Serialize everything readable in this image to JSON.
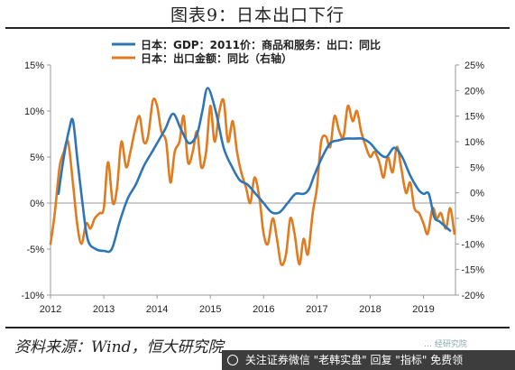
{
  "page": {
    "title": "图表9：日本出口下行",
    "source": "资料来源：Wind，恒大研究院",
    "watermark_small": "… 经研究院",
    "banner_text": "关注证券微信 \"老韩实盘\" 回复 \"指标\" 免费领"
  },
  "colors": {
    "blue": "#2E75B6",
    "orange": "#E07B1F",
    "axis": "#999999"
  },
  "chart_data": {
    "type": "line",
    "legend": {
      "position": "top-left"
    },
    "x_ticks": [
      "2012",
      "2013",
      "2014",
      "2015",
      "2016",
      "2017",
      "2018",
      "2019"
    ],
    "xlim": [
      2012.0,
      2019.6
    ],
    "y_left": {
      "ticks": [
        "15%",
        "10%",
        "5%",
        "0%",
        "-5%",
        "-10%"
      ],
      "ylim": [
        -10,
        15
      ]
    },
    "y_right": {
      "ticks": [
        "25%",
        "20%",
        "15%",
        "10%",
        "5%",
        "0%",
        "-5%",
        "-10%",
        "-15%",
        "-20%"
      ],
      "ylim": [
        -20,
        25
      ]
    },
    "series": [
      {
        "name": "日本：GDP：2011价：商品和服务：出口：同比",
        "axis": "left",
        "color": "#2E75B6",
        "x": [
          2012.15,
          2012.25,
          2012.35,
          2012.42,
          2012.5,
          2012.6,
          2012.7,
          2012.85,
          2013.0,
          2013.15,
          2013.3,
          2013.45,
          2013.6,
          2013.75,
          2013.9,
          2014.0,
          2014.15,
          2014.3,
          2014.45,
          2014.6,
          2014.75,
          2014.85,
          2014.95,
          2015.1,
          2015.25,
          2015.4,
          2015.55,
          2015.7,
          2015.85,
          2016.0,
          2016.15,
          2016.3,
          2016.45,
          2016.6,
          2016.75,
          2016.85,
          2016.95,
          2017.1,
          2017.25,
          2017.4,
          2017.55,
          2017.7,
          2017.85,
          2018.0,
          2018.15,
          2018.3,
          2018.45,
          2018.6,
          2018.75,
          2018.9,
          2019.0,
          2019.1,
          2019.2,
          2019.3,
          2019.4,
          2019.5
        ],
        "values": [
          1.0,
          5.0,
          8.0,
          9.0,
          5.0,
          0.0,
          -4.0,
          -5.0,
          -5.2,
          -5.0,
          -2.0,
          0.5,
          2.0,
          4.0,
          5.5,
          6.5,
          8.0,
          9.7,
          8.0,
          6.5,
          7.5,
          10.0,
          12.5,
          10.0,
          6.0,
          4.0,
          2.5,
          2.0,
          1.0,
          0.0,
          -1.0,
          -1.0,
          0.0,
          1.0,
          1.0,
          1.5,
          3.0,
          5.0,
          6.5,
          6.8,
          7.0,
          7.0,
          7.0,
          6.5,
          5.5,
          5.0,
          6.0,
          5.0,
          3.0,
          1.5,
          1.0,
          1.0,
          -1.5,
          -2.0,
          -2.5,
          -3.0
        ]
      },
      {
        "name": "日本：出口金额：同比（右轴）",
        "axis": "right",
        "color": "#E07B1F",
        "x": [
          2012.0,
          2012.08,
          2012.17,
          2012.25,
          2012.33,
          2012.42,
          2012.5,
          2012.58,
          2012.67,
          2012.75,
          2012.83,
          2012.92,
          2013.0,
          2013.08,
          2013.17,
          2013.25,
          2013.33,
          2013.42,
          2013.5,
          2013.58,
          2013.67,
          2013.75,
          2013.83,
          2013.92,
          2014.0,
          2014.08,
          2014.17,
          2014.25,
          2014.33,
          2014.42,
          2014.5,
          2014.58,
          2014.67,
          2014.75,
          2014.83,
          2014.92,
          2015.0,
          2015.08,
          2015.17,
          2015.25,
          2015.33,
          2015.42,
          2015.5,
          2015.58,
          2015.67,
          2015.75,
          2015.83,
          2015.92,
          2016.0,
          2016.08,
          2016.17,
          2016.25,
          2016.33,
          2016.42,
          2016.5,
          2016.58,
          2016.67,
          2016.75,
          2016.83,
          2016.92,
          2017.0,
          2017.08,
          2017.17,
          2017.25,
          2017.33,
          2017.42,
          2017.5,
          2017.58,
          2017.67,
          2017.75,
          2017.83,
          2017.92,
          2018.0,
          2018.08,
          2018.17,
          2018.25,
          2018.33,
          2018.42,
          2018.5,
          2018.58,
          2018.67,
          2018.75,
          2018.83,
          2018.92,
          2019.0,
          2019.08,
          2019.17,
          2019.25,
          2019.33,
          2019.42,
          2019.5,
          2019.58
        ],
        "values": [
          -10.0,
          -4.0,
          5.0,
          8.0,
          10.0,
          2.0,
          -6.0,
          -10.0,
          -6.0,
          -7.0,
          -5.0,
          -4.0,
          -3.0,
          6.0,
          -2.0,
          1.0,
          10.0,
          5.0,
          8.0,
          12.0,
          15.0,
          10.0,
          11.0,
          18.0,
          17.0,
          12.0,
          10.0,
          2.0,
          8.0,
          10.0,
          15.0,
          6.0,
          8.0,
          12.0,
          5.0,
          8.0,
          17.0,
          10.0,
          16.0,
          18.0,
          10.0,
          14.0,
          8.0,
          4.0,
          1.0,
          -2.0,
          3.0,
          -1.0,
          -8.0,
          -10.0,
          -5.0,
          -9.0,
          -14.0,
          -12.0,
          -5.0,
          -8.0,
          -14.0,
          -9.0,
          -12.0,
          -4.0,
          1.0,
          10.0,
          11.0,
          9.0,
          15.0,
          12.0,
          11.0,
          17.0,
          14.0,
          16.0,
          12.0,
          9.0,
          7.0,
          8.0,
          6.0,
          3.0,
          7.0,
          4.0,
          9.0,
          5.0,
          0.0,
          2.0,
          -3.0,
          -4.0,
          -6.0,
          -8.0,
          -3.0,
          -5.0,
          -4.0,
          -7.0,
          -3.0,
          -8.0
        ]
      }
    ]
  }
}
